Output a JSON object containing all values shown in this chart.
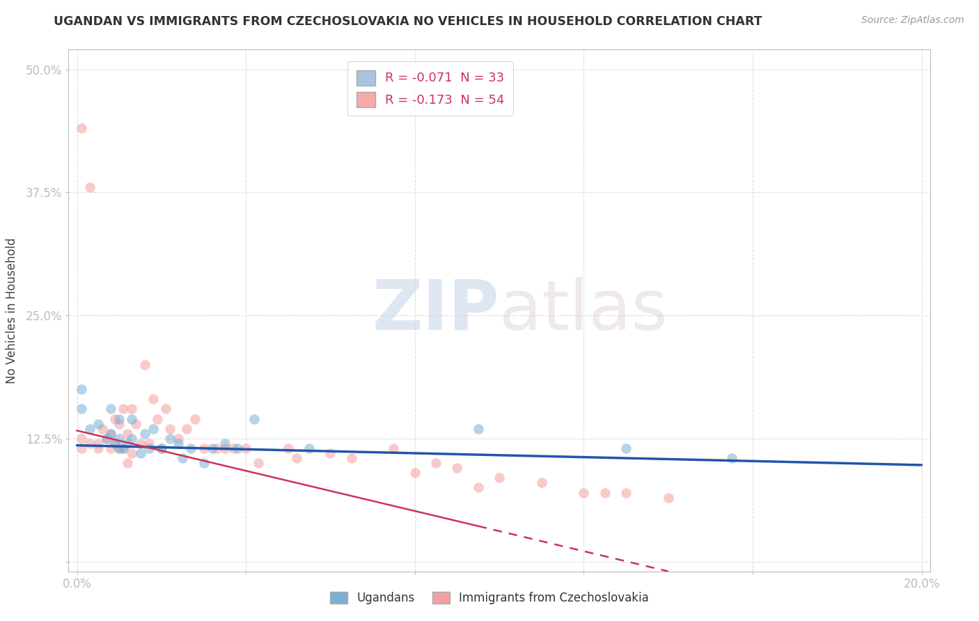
{
  "title": "UGANDAN VS IMMIGRANTS FROM CZECHOSLOVAKIA NO VEHICLES IN HOUSEHOLD CORRELATION CHART",
  "source": "Source: ZipAtlas.com",
  "ylabel": "No Vehicles in Household",
  "xlim": [
    -0.002,
    0.202
  ],
  "ylim": [
    -0.01,
    0.52
  ],
  "xticks": [
    0.0,
    0.04,
    0.08,
    0.12,
    0.16,
    0.2
  ],
  "xticklabels": [
    "0.0%",
    "",
    "",
    "",
    "",
    "20.0%"
  ],
  "yticks": [
    0.0,
    0.125,
    0.25,
    0.375,
    0.5
  ],
  "yticklabels": [
    "",
    "12.5%",
    "25.0%",
    "37.5%",
    "50.0%"
  ],
  "legend1_label": "R = -0.071  N = 33",
  "legend2_label": "R = -0.173  N = 54",
  "legend_color1": "#aac4e0",
  "legend_color2": "#f4aaaa",
  "watermark_zip": "ZIP",
  "watermark_atlas": "atlas",
  "ugandan_color": "#7ab0d4",
  "czech_color": "#f4a0a0",
  "trend_color_ugandan": "#2255aa",
  "trend_color_czech": "#cc3355",
  "ugandan_x": [
    0.001,
    0.001,
    0.003,
    0.005,
    0.007,
    0.008,
    0.008,
    0.009,
    0.01,
    0.01,
    0.01,
    0.011,
    0.012,
    0.013,
    0.013,
    0.015,
    0.016,
    0.017,
    0.018,
    0.02,
    0.022,
    0.024,
    0.025,
    0.027,
    0.03,
    0.032,
    0.035,
    0.038,
    0.042,
    0.055,
    0.095,
    0.13,
    0.155
  ],
  "ugandan_y": [
    0.175,
    0.155,
    0.135,
    0.14,
    0.125,
    0.13,
    0.155,
    0.12,
    0.115,
    0.125,
    0.145,
    0.115,
    0.12,
    0.125,
    0.145,
    0.11,
    0.13,
    0.115,
    0.135,
    0.115,
    0.125,
    0.12,
    0.105,
    0.115,
    0.1,
    0.115,
    0.12,
    0.115,
    0.145,
    0.115,
    0.135,
    0.115,
    0.105
  ],
  "czech_x": [
    0.001,
    0.001,
    0.001,
    0.003,
    0.003,
    0.005,
    0.005,
    0.006,
    0.007,
    0.008,
    0.008,
    0.009,
    0.009,
    0.01,
    0.01,
    0.011,
    0.011,
    0.012,
    0.012,
    0.013,
    0.013,
    0.014,
    0.015,
    0.016,
    0.017,
    0.018,
    0.019,
    0.02,
    0.021,
    0.022,
    0.024,
    0.026,
    0.028,
    0.03,
    0.033,
    0.035,
    0.037,
    0.04,
    0.043,
    0.05,
    0.052,
    0.06,
    0.065,
    0.075,
    0.08,
    0.085,
    0.09,
    0.095,
    0.1,
    0.11,
    0.12,
    0.125,
    0.13,
    0.14
  ],
  "czech_y": [
    0.44,
    0.125,
    0.115,
    0.12,
    0.38,
    0.115,
    0.12,
    0.135,
    0.125,
    0.115,
    0.13,
    0.12,
    0.145,
    0.115,
    0.14,
    0.115,
    0.155,
    0.1,
    0.13,
    0.11,
    0.155,
    0.14,
    0.12,
    0.2,
    0.12,
    0.165,
    0.145,
    0.115,
    0.155,
    0.135,
    0.125,
    0.135,
    0.145,
    0.115,
    0.115,
    0.115,
    0.115,
    0.115,
    0.1,
    0.115,
    0.105,
    0.11,
    0.105,
    0.115,
    0.09,
    0.1,
    0.095,
    0.075,
    0.085,
    0.08,
    0.07,
    0.07,
    0.07,
    0.065
  ],
  "trend_ug_x0": 0.0,
  "trend_ug_x1": 0.2,
  "trend_ug_y0": 0.118,
  "trend_ug_y1": 0.098,
  "trend_cz_x0": 0.0,
  "trend_cz_x1": 0.14,
  "trend_cz_y0": 0.133,
  "trend_cz_y1": -0.01,
  "trend_cz_dash_x0": 0.095,
  "trend_cz_dash_x1": 0.14,
  "background_color": "#ffffff",
  "grid_color": "#dddddd",
  "title_color": "#333333",
  "axis_tick_color": "#5588cc",
  "marker_size": 110,
  "marker_alpha": 0.55
}
